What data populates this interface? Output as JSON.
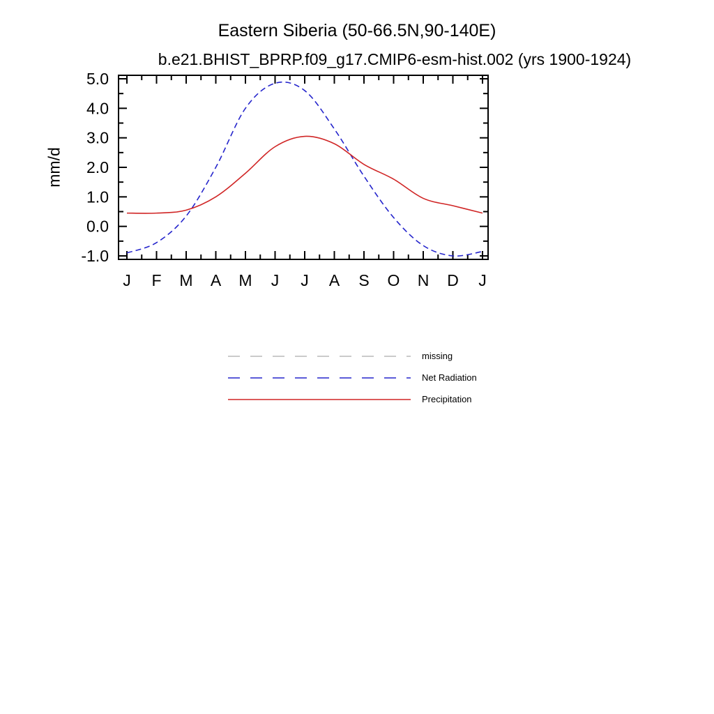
{
  "chart_data": {
    "type": "line",
    "title": "Eastern Siberia (50-66.5N,90-140E)",
    "subtitle": "b.e21.BHIST_BPRP.f09_g17.CMIP6-esm-hist.002 (yrs 1900-1924)",
    "xlabel": "",
    "ylabel": "mm/d",
    "x_tick_labels": [
      "J",
      "F",
      "M",
      "A",
      "M",
      "J",
      "J",
      "A",
      "S",
      "O",
      "N",
      "D",
      "J"
    ],
    "y_ticks": [
      5.0,
      4.0,
      3.0,
      2.0,
      1.0,
      0.0,
      -1.0
    ],
    "y_tick_labels": [
      "5.0",
      "4.0",
      "3.0",
      "2.0",
      "1.0",
      "0.0",
      "-1.0"
    ],
    "ylim": [
      -1.0,
      5.0
    ],
    "grid": false,
    "legend_position": "below-center",
    "frame_color": "#000000",
    "series": [
      {
        "name": "missing",
        "color": "#b9b9b9",
        "style": "dashed",
        "values": null
      },
      {
        "name": "Net Radiation",
        "color": "#2525cc",
        "style": "dashed",
        "values": [
          -0.9,
          -0.55,
          0.35,
          2.0,
          4.0,
          4.85,
          4.6,
          3.3,
          1.7,
          0.3,
          -0.65,
          -1.0,
          -0.85
        ]
      },
      {
        "name": "Precipitation",
        "color": "#d02525",
        "style": "solid",
        "values": [
          0.45,
          0.45,
          0.55,
          1.0,
          1.8,
          2.7,
          3.05,
          2.8,
          2.1,
          1.6,
          0.95,
          0.7,
          0.45
        ]
      }
    ]
  }
}
